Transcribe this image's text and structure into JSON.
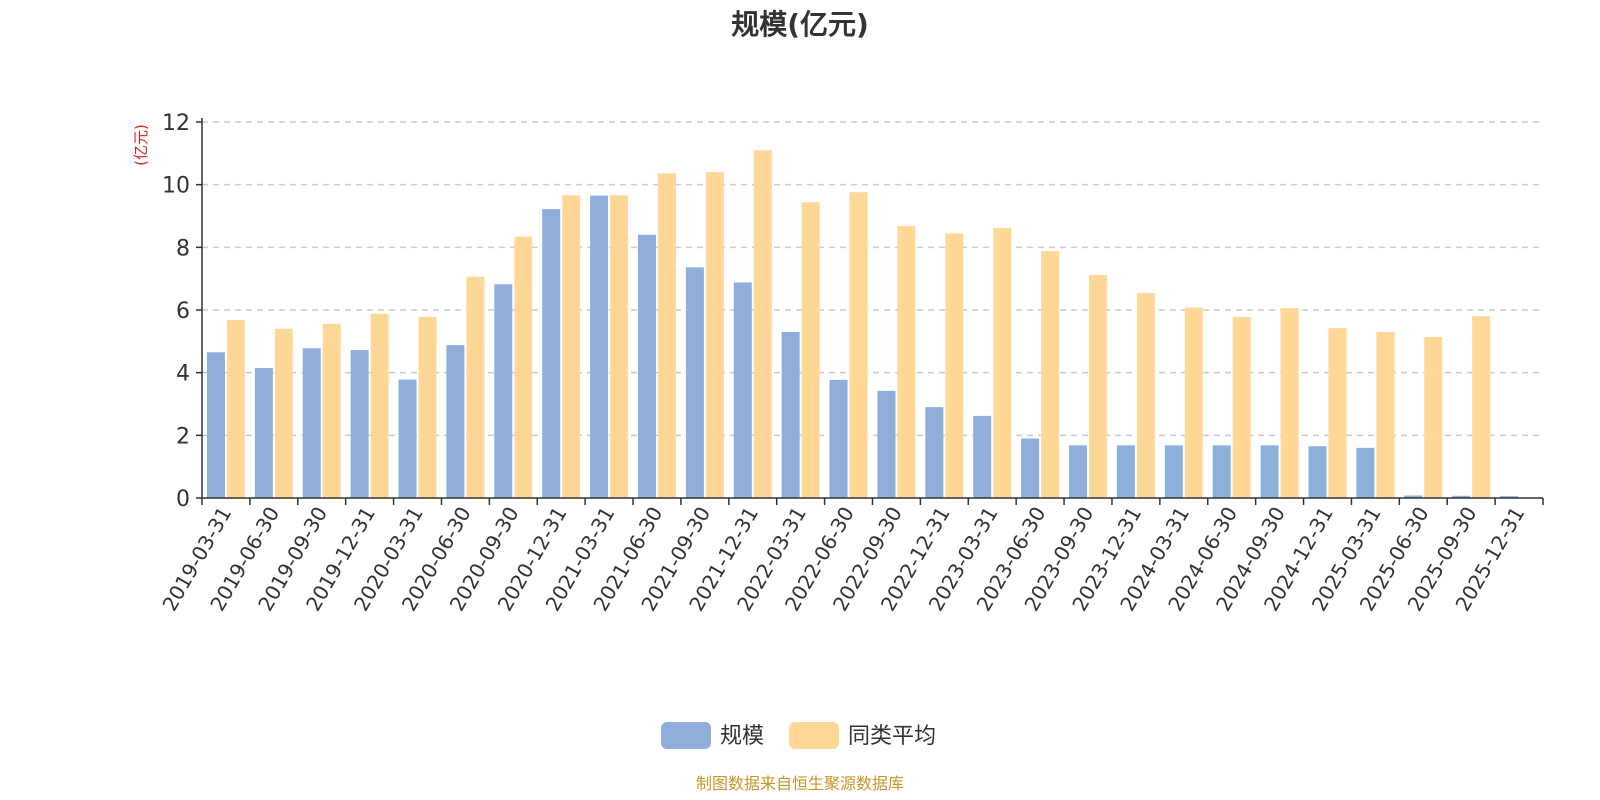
{
  "chart_data": {
    "type": "bar",
    "title": "规模(亿元)",
    "ylabel": "(亿元)",
    "xlabel": "",
    "ylim": [
      0,
      12
    ],
    "yticks": [
      0,
      2,
      4,
      6,
      8,
      10,
      12
    ],
    "grid": "horizontal dashed",
    "legend_position": "bottom-center",
    "categories": [
      "2019-03-31",
      "2019-06-30",
      "2019-09-30",
      "2019-12-31",
      "2020-03-31",
      "2020-06-30",
      "2020-09-30",
      "2020-12-31",
      "2021-03-31",
      "2021-06-30",
      "2021-09-30",
      "2021-12-31",
      "2022-03-31",
      "2022-06-30",
      "2022-09-30",
      "2022-12-31",
      "2023-03-31",
      "2023-06-30",
      "2023-09-30",
      "2023-12-31",
      "2024-03-31",
      "2024-06-30",
      "2024-09-30",
      "2024-12-31",
      "2025-03-31",
      "2025-06-30",
      "2025-09-30",
      "2025-12-31"
    ],
    "series": [
      {
        "name": "规模",
        "color": "#8faedb",
        "values": [
          4.65,
          4.15,
          4.78,
          4.72,
          3.78,
          4.88,
          6.82,
          9.22,
          9.65,
          8.4,
          7.36,
          6.88,
          5.3,
          3.77,
          3.42,
          2.9,
          2.62,
          1.9,
          1.68,
          1.68,
          1.68,
          1.68,
          1.68,
          1.65,
          1.6,
          0.08,
          0.07,
          0.06
        ]
      },
      {
        "name": "同类平均",
        "color": "#ffd898",
        "values": [
          5.68,
          5.4,
          5.56,
          5.88,
          5.78,
          7.06,
          8.34,
          9.66,
          9.66,
          10.36,
          10.4,
          11.1,
          9.44,
          9.76,
          8.68,
          8.44,
          8.62,
          7.88,
          7.12,
          6.54,
          6.08,
          5.78,
          6.06,
          5.42,
          5.3,
          5.14,
          5.8,
          null
        ]
      }
    ],
    "source_note": "制图数据来自恒生聚源数据库"
  }
}
